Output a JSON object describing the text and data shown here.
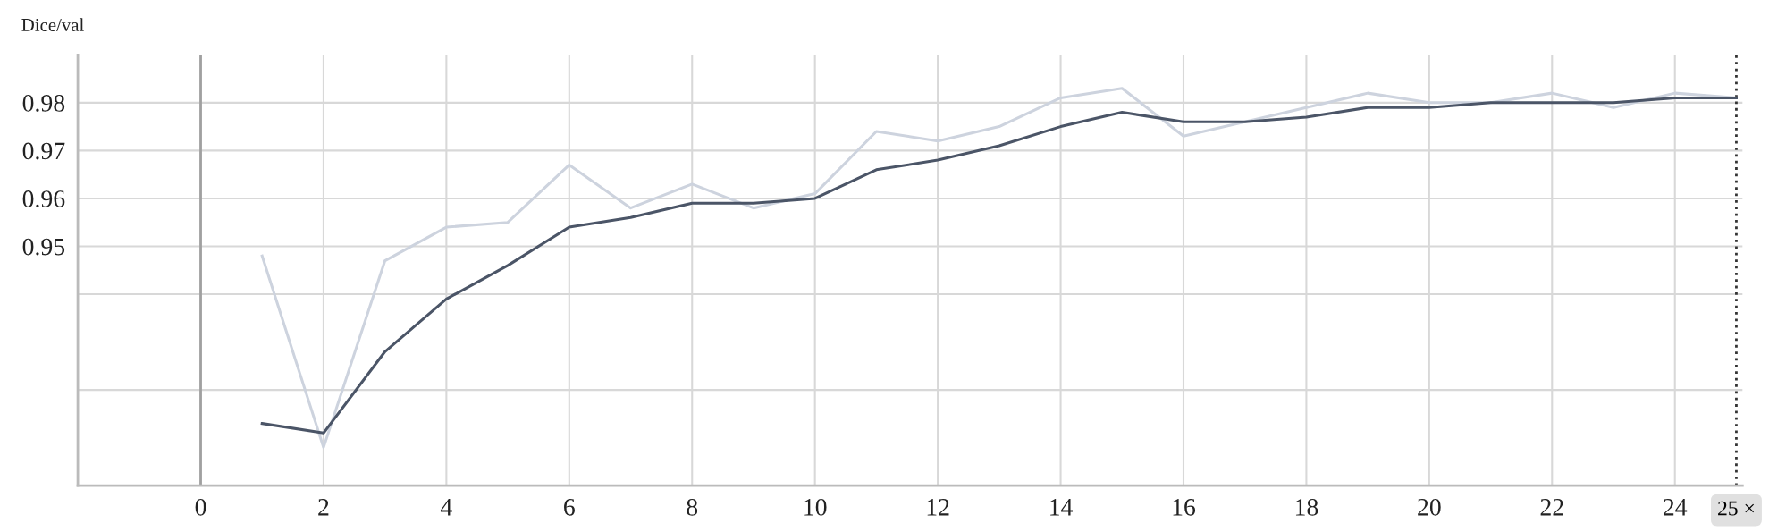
{
  "chart_data": {
    "type": "line",
    "title": "Dice/val",
    "x": [
      1,
      2,
      3,
      4,
      5,
      6,
      7,
      8,
      9,
      10,
      11,
      12,
      13,
      14,
      15,
      16,
      17,
      18,
      19,
      20,
      21,
      22,
      23,
      24,
      25
    ],
    "series": [
      {
        "color": "#cdd3de",
        "values": [
          0.948,
          0.908,
          0.947,
          0.954,
          0.955,
          0.967,
          0.958,
          0.963,
          0.958,
          0.961,
          0.974,
          0.972,
          0.975,
          0.981,
          0.983,
          0.973,
          0.976,
          0.979,
          0.982,
          0.98,
          0.98,
          0.982,
          0.979,
          0.982,
          0.981
        ]
      },
      {
        "color": "#4b5567",
        "values": [
          0.913,
          0.911,
          0.928,
          0.939,
          0.946,
          0.954,
          0.956,
          0.959,
          0.959,
          0.96,
          0.966,
          0.968,
          0.971,
          0.975,
          0.978,
          0.976,
          0.976,
          0.977,
          0.979,
          0.979,
          0.98,
          0.98,
          0.98,
          0.981,
          0.981
        ]
      }
    ],
    "xlim": [
      -2,
      25.1
    ],
    "xticks": [
      0,
      2,
      4,
      6,
      8,
      10,
      12,
      14,
      16,
      18,
      20,
      22,
      24
    ],
    "ylim": [
      0.9,
      0.99
    ],
    "yticks": [
      {
        "value": 0.92,
        "label": null
      },
      {
        "value": 0.94,
        "label": null
      },
      0.95,
      0.96,
      0.97,
      0.98
    ],
    "grid": true,
    "marker": "none",
    "line_style": "solid",
    "ref_lines": [
      {
        "axis": "x",
        "value": 0,
        "color": "#a0a0a0",
        "line_style": "solid"
      },
      {
        "axis": "x",
        "value": 25,
        "label": "25 ×",
        "color": "#333333",
        "line_style": "dotted"
      }
    ]
  }
}
